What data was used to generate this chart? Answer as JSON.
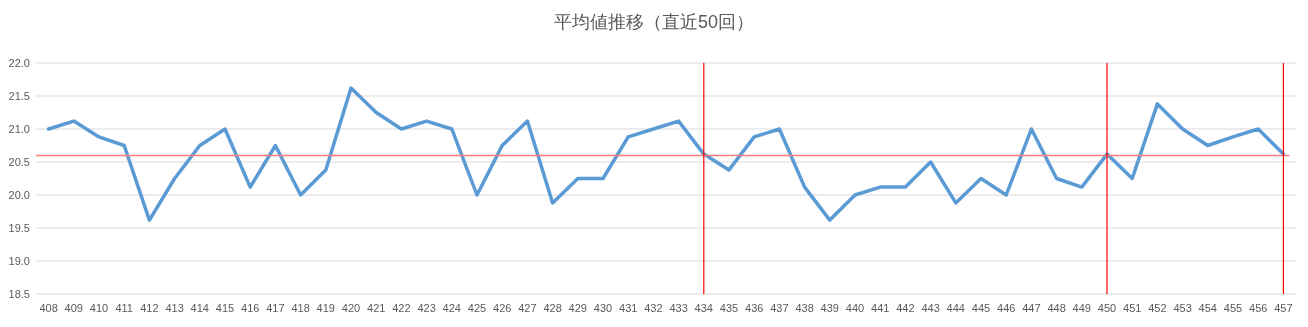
{
  "chart_data": {
    "type": "line",
    "title": "平均値推移（直近50回）",
    "categories": [
      "408",
      "409",
      "410",
      "411",
      "412",
      "413",
      "414",
      "415",
      "416",
      "417",
      "418",
      "419",
      "420",
      "421",
      "422",
      "423",
      "424",
      "425",
      "426",
      "427",
      "428",
      "429",
      "430",
      "431",
      "432",
      "433",
      "434",
      "435",
      "436",
      "437",
      "438",
      "439",
      "440",
      "441",
      "442",
      "443",
      "444",
      "445",
      "446",
      "447",
      "448",
      "449",
      "450",
      "451",
      "452",
      "453",
      "454",
      "455",
      "456",
      "457"
    ],
    "series": [
      {
        "color": "#5b9bd5",
        "values": [
          21.0,
          21.12,
          20.88,
          20.75,
          19.62,
          20.25,
          20.75,
          21.0,
          20.12,
          20.75,
          20.0,
          20.38,
          21.62,
          21.25,
          21.0,
          21.12,
          21.0,
          20.0,
          20.75,
          21.12,
          19.88,
          20.25,
          20.25,
          20.88,
          21.0,
          21.12,
          20.62,
          20.38,
          20.88,
          21.0,
          20.12,
          19.62,
          20.0,
          20.12,
          20.12,
          20.5,
          19.88,
          20.25,
          20.0,
          21.0,
          20.25,
          20.12,
          20.62,
          20.25,
          21.38,
          21.0,
          20.75,
          20.88,
          21.0,
          20.62
        ]
      }
    ],
    "ylim": [
      18.5,
      22.0
    ],
    "yticks": [
      {
        "value": 18.5,
        "label": "18.5"
      },
      {
        "value": 19,
        "label": "19.0"
      },
      {
        "value": 19.5,
        "label": "19.5"
      },
      {
        "value": 20,
        "label": "20.0"
      },
      {
        "value": 20.5,
        "label": "20.5"
      },
      {
        "value": 21,
        "label": "21.0"
      },
      {
        "value": 21.5,
        "label": "21.5"
      },
      {
        "value": 22,
        "label": "22.0"
      }
    ],
    "grid": "y",
    "marker": "none",
    "line_style": "solid",
    "ref_lines": [
      {
        "axis": "y",
        "value": 20.6,
        "color": "#ff7c7c"
      },
      {
        "axis": "x",
        "value": "434",
        "color": "#ff0000"
      },
      {
        "axis": "x",
        "value": "450",
        "color": "#ff0000"
      },
      {
        "axis": "x",
        "value": "457",
        "color": "#ff0000"
      }
    ]
  }
}
